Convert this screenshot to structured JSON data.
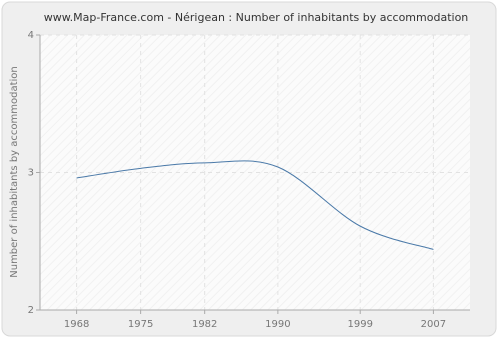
{
  "chart_data": {
    "type": "line",
    "title": "www.Map-France.com - Nérigean : Number of inhabitants by accommodation",
    "y_label": "Number of inhabitants by accommodation",
    "x": [
      1968,
      1975,
      1982,
      1990,
      1999,
      2007
    ],
    "series": [
      {
        "name": "Nérigean",
        "color": "#4a79a8",
        "values": [
          2.96,
          3.03,
          3.07,
          3.04,
          2.61,
          2.44
        ]
      }
    ],
    "xlim": [
      1964,
      2011
    ],
    "xticks": [
      1968,
      1975,
      1982,
      1990,
      1999,
      2007
    ],
    "ylim": [
      2,
      4
    ],
    "yticks": [
      2,
      3,
      4
    ],
    "grid": true
  }
}
